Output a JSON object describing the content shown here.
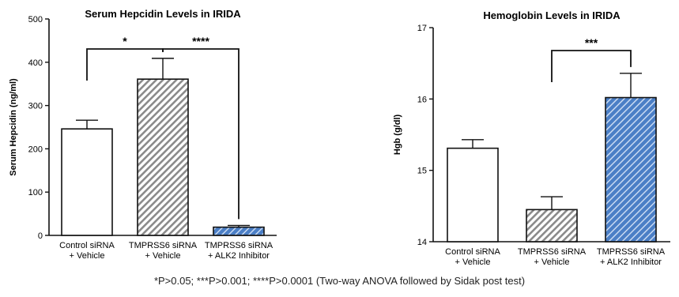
{
  "chart_data": [
    {
      "type": "bar",
      "title": "Serum Hepcidin Levels in IRIDA",
      "ylabel": "Serum Hepcidin  (ng/ml)",
      "xlabel": "",
      "ylim": [
        0,
        500
      ],
      "yticks": [
        0,
        100,
        200,
        300,
        400,
        500
      ],
      "categories": [
        [
          "Control siRNA",
          "+ Vehicle"
        ],
        [
          "TMPRSS6 siRNA",
          "+  Vehicle"
        ],
        [
          "TMPRSS6 siRNA",
          "+ ALK2 Inhibitor"
        ]
      ],
      "values": [
        246,
        361,
        19
      ],
      "errors": [
        20,
        48,
        4
      ],
      "fills": [
        "plain",
        "grey-hatched",
        "blue-hatched"
      ],
      "significance": [
        {
          "from": 0,
          "to": 1,
          "label": "*"
        },
        {
          "from": 1,
          "to": 2,
          "label": "****"
        }
      ]
    },
    {
      "type": "bar",
      "title": "Hemoglobin Levels in IRIDA",
      "ylabel": "Hgb (g/dl)",
      "xlabel": "",
      "ylim": [
        14,
        17
      ],
      "yticks": [
        14,
        15,
        16,
        17
      ],
      "categories": [
        [
          "Control siRNA",
          "+ Vehicle"
        ],
        [
          "TMPRSS6 siRNA",
          "+  Vehicle"
        ],
        [
          "TMPRSS6 siRNA",
          "+  ALK2 Inhibitor"
        ]
      ],
      "values": [
        15.31,
        14.45,
        16.02
      ],
      "errors": [
        0.12,
        0.18,
        0.34
      ],
      "fills": [
        "plain",
        "grey-hatched",
        "blue-hatched"
      ],
      "significance": [
        {
          "from": 1,
          "to": 2,
          "label": "***"
        }
      ]
    }
  ],
  "footnote": "*P>0.05; ***P>0.001; ****P>0.0001 (Two-way ANOVA followed by Sidak post test)",
  "colors": {
    "axis": "#111111",
    "grey_hatch": "#8a8a8a",
    "blue_fill": "#4b7fc6",
    "blue_hatch": "#c9daf2",
    "plain_fill": "#ffffff"
  }
}
